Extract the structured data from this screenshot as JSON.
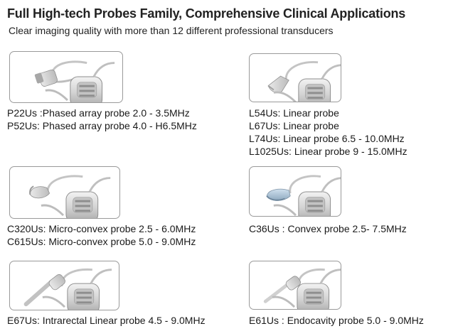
{
  "header": {
    "title": "Full High-tech Probes Family, Comprehensive Clinical Applications",
    "subtitle": "Clear imaging quality with more than 12 different professional transducers"
  },
  "probe_groups": [
    {
      "image_icon": "phased-array-probe-icon",
      "lines": [
        "P22Us :Phased array probe  2.0 - 3.5MHz",
        "P52Us: Phased array probe 4.0 - H6.5MHz"
      ]
    },
    {
      "image_icon": "linear-probe-icon",
      "lines": [
        "L54Us: Linear probe",
        "L67Us: Linear probe",
        "L74Us: Linear probe 6.5 - 10.0MHz",
        "L1025Us: Linear probe  9 - 15.0MHz"
      ]
    },
    {
      "image_icon": "micro-convex-probe-icon",
      "lines": [
        "C320Us: Micro-convex probe 2.5 -  6.0MHz",
        "C615Us: Micro-convex probe 5.0 - 9.0MHz"
      ]
    },
    {
      "image_icon": "convex-probe-icon",
      "lines": [
        "C36Us : Convex probe 2.5- 7.5MHz"
      ]
    },
    {
      "image_icon": "intrarectal-probe-icon",
      "lines": [
        "E67Us: Intrarectal Linear probe 4.5 - 9.0MHz"
      ]
    },
    {
      "image_icon": "endocavity-probe-icon",
      "lines": [
        "E61Us :  Endocavity probe 5.0 - 9.0MHz"
      ]
    }
  ]
}
